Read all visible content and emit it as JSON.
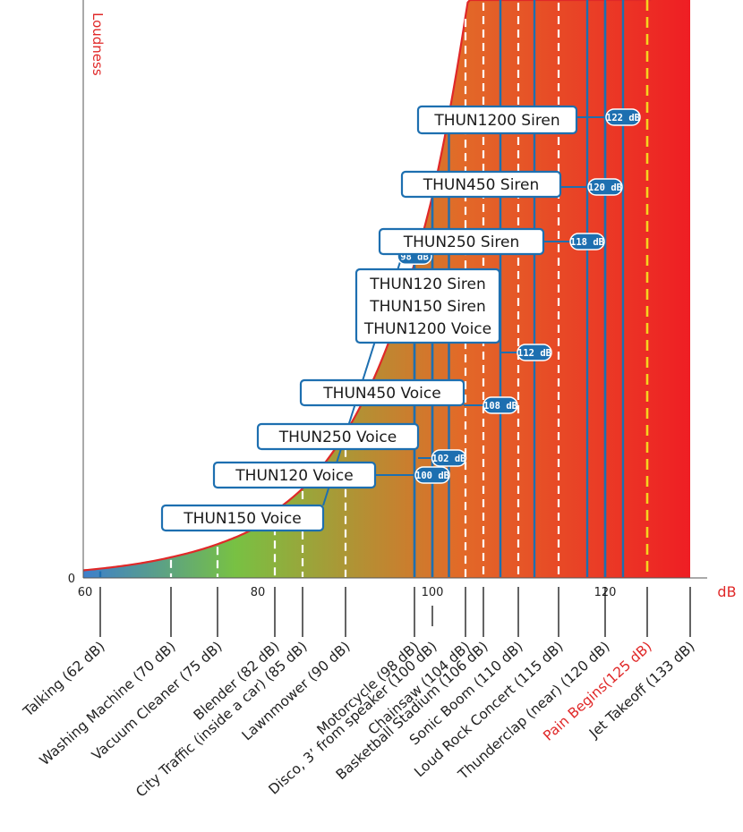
{
  "chart_data": {
    "type": "area",
    "ylabel": "Loudness",
    "xlabel": "dB",
    "y_zero_label": "0",
    "x_ticks": [
      60,
      80,
      100,
      120
    ],
    "xlim": [
      60,
      133
    ],
    "gradient_colors": [
      "#3d7fcc",
      "#78c143",
      "#e26a28",
      "#ef1e24"
    ],
    "curve_color": "#e02828",
    "sources": [
      {
        "label": "Talking (62 dB)",
        "db": 62,
        "line": "solid",
        "red": false
      },
      {
        "label": "Washing Machine (70 dB)",
        "db": 70,
        "line": "dashed",
        "red": false
      },
      {
        "label": "Vacuum Cleaner (75 dB)",
        "db": 75,
        "line": "dashed",
        "red": false
      },
      {
        "label": "Blender (82 dB)",
        "db": 82,
        "line": "dashed",
        "red": false
      },
      {
        "label": "City Traffic (inside a car) (85 dB)",
        "db": 85,
        "line": "dashed",
        "red": false
      },
      {
        "label": "Lawnmower (90 dB)",
        "db": 90,
        "line": "dashed",
        "red": false
      },
      {
        "label": "Motorcycle (98 dB)",
        "db": 98,
        "line": "solid",
        "red": false
      },
      {
        "label": "Disco, 3’ from speaker (100 dB)",
        "db": 100,
        "line": "solid",
        "red": false
      },
      {
        "label": "Chainsaw (104 dB)",
        "db": 104,
        "line": "dashed",
        "red": false
      },
      {
        "label": "Basketball Stadium (106 dB)",
        "db": 106,
        "line": "dashed",
        "red": false
      },
      {
        "label": "Sonic Boom (110 dB)",
        "db": 110,
        "line": "dashed",
        "red": false
      },
      {
        "label": "Loud Rock Concert (115 dB)",
        "db": 115,
        "line": "dashed",
        "red": false
      },
      {
        "label": "Thunderclap (near) (120 dB)",
        "db": 120,
        "line": "solid",
        "red": false
      },
      {
        "label": "Pain Begins(125 dB)",
        "db": 125,
        "line": "pain",
        "red": true
      },
      {
        "label": "Jet Takeoff (133 dB)",
        "db": 133,
        "line": "none",
        "red": false
      }
    ],
    "products": [
      {
        "lines": [
          "THUN150 Voice"
        ],
        "db": 98,
        "pill": "98 dB"
      },
      {
        "lines": [
          "THUN120 Voice"
        ],
        "db": 100,
        "pill": "100 dB"
      },
      {
        "lines": [
          "THUN250 Voice"
        ],
        "db": 102,
        "pill": "102 dB"
      },
      {
        "lines": [
          "THUN450 Voice"
        ],
        "db": 108,
        "pill": "108 dB"
      },
      {
        "lines": [
          "THUN120 Siren",
          "THUN150 Siren",
          "THUN1200 Voice"
        ],
        "db": 112,
        "pill": "112 dB"
      },
      {
        "lines": [
          "THUN250 Siren"
        ],
        "db": 118,
        "pill": "118 dB"
      },
      {
        "lines": [
          "THUN450 Siren"
        ],
        "db": 120,
        "pill": "120 dB"
      },
      {
        "lines": [
          "THUN1200 Siren"
        ],
        "db": 122,
        "pill": "122 dB"
      }
    ]
  }
}
